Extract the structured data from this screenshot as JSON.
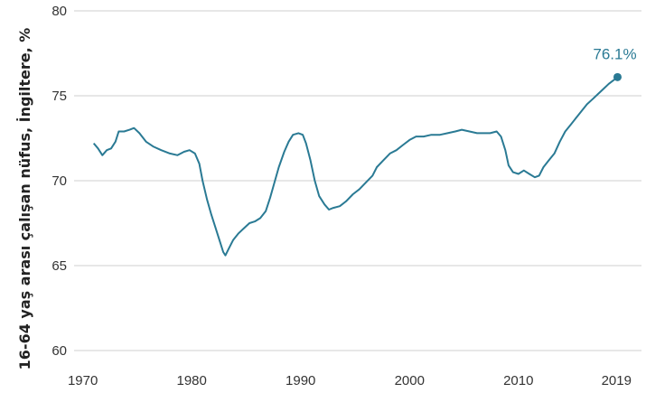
{
  "chart_data": {
    "type": "line",
    "title": "",
    "xlabel": "",
    "ylabel": "16-64 yaş arası çalışan nüfus, İngiltere, %",
    "xlim": [
      1969.2,
      2021.3
    ],
    "ylim": [
      60,
      80
    ],
    "x_ticks": [
      1970,
      1980,
      1990,
      2000,
      2010,
      2019
    ],
    "x_tick_labels": [
      "1970",
      "1980",
      "1990",
      "2000",
      "2010",
      "2019"
    ],
    "y_ticks": [
      60,
      65,
      70,
      75,
      80
    ],
    "y_tick_labels": [
      "60",
      "65",
      "70",
      "75",
      "80"
    ],
    "grid": "horizontal",
    "colors": {
      "line": "#2a7a94",
      "grid": "#cfcfcf",
      "label": "#2a7a94"
    },
    "end_annotation": {
      "x": 2019.1,
      "y": 76.1,
      "text": "76.1%"
    },
    "series": [
      {
        "points": [
          [
            1971.0,
            72.2
          ],
          [
            1971.4,
            71.9
          ],
          [
            1971.8,
            71.5
          ],
          [
            1972.2,
            71.8
          ],
          [
            1972.6,
            71.9
          ],
          [
            1973.0,
            72.3
          ],
          [
            1973.3,
            72.9
          ],
          [
            1973.8,
            72.9
          ],
          [
            1974.3,
            73.0
          ],
          [
            1974.7,
            73.1
          ],
          [
            1975.2,
            72.8
          ],
          [
            1975.8,
            72.3
          ],
          [
            1976.5,
            72.0
          ],
          [
            1977.2,
            71.8
          ],
          [
            1978.0,
            71.6
          ],
          [
            1978.7,
            71.5
          ],
          [
            1979.3,
            71.7
          ],
          [
            1979.8,
            71.8
          ],
          [
            1980.3,
            71.6
          ],
          [
            1980.7,
            71.0
          ],
          [
            1981.0,
            70.0
          ],
          [
            1981.4,
            68.9
          ],
          [
            1981.8,
            68.0
          ],
          [
            1982.2,
            67.2
          ],
          [
            1982.6,
            66.4
          ],
          [
            1982.9,
            65.8
          ],
          [
            1983.1,
            65.6
          ],
          [
            1983.4,
            66.0
          ],
          [
            1983.8,
            66.5
          ],
          [
            1984.3,
            66.9
          ],
          [
            1984.8,
            67.2
          ],
          [
            1985.3,
            67.5
          ],
          [
            1985.8,
            67.6
          ],
          [
            1986.3,
            67.8
          ],
          [
            1986.8,
            68.2
          ],
          [
            1987.2,
            69.0
          ],
          [
            1987.6,
            69.9
          ],
          [
            1988.0,
            70.8
          ],
          [
            1988.5,
            71.7
          ],
          [
            1988.9,
            72.3
          ],
          [
            1989.3,
            72.7
          ],
          [
            1989.8,
            72.8
          ],
          [
            1990.2,
            72.7
          ],
          [
            1990.5,
            72.2
          ],
          [
            1990.9,
            71.2
          ],
          [
            1991.3,
            70.0
          ],
          [
            1991.7,
            69.1
          ],
          [
            1992.2,
            68.6
          ],
          [
            1992.6,
            68.3
          ],
          [
            1993.0,
            68.4
          ],
          [
            1993.6,
            68.5
          ],
          [
            1994.2,
            68.8
          ],
          [
            1994.8,
            69.2
          ],
          [
            1995.4,
            69.5
          ],
          [
            1996.0,
            69.9
          ],
          [
            1996.6,
            70.3
          ],
          [
            1997.0,
            70.8
          ],
          [
            1997.6,
            71.2
          ],
          [
            1998.2,
            71.6
          ],
          [
            1998.8,
            71.8
          ],
          [
            1999.4,
            72.1
          ],
          [
            2000.0,
            72.4
          ],
          [
            2000.6,
            72.6
          ],
          [
            2001.3,
            72.6
          ],
          [
            2002.0,
            72.7
          ],
          [
            2002.8,
            72.7
          ],
          [
            2003.5,
            72.8
          ],
          [
            2004.2,
            72.9
          ],
          [
            2004.8,
            73.0
          ],
          [
            2005.5,
            72.9
          ],
          [
            2006.2,
            72.8
          ],
          [
            2006.8,
            72.8
          ],
          [
            2007.4,
            72.8
          ],
          [
            2008.0,
            72.9
          ],
          [
            2008.4,
            72.6
          ],
          [
            2008.8,
            71.8
          ],
          [
            2009.1,
            70.9
          ],
          [
            2009.5,
            70.5
          ],
          [
            2010.0,
            70.4
          ],
          [
            2010.5,
            70.6
          ],
          [
            2011.0,
            70.4
          ],
          [
            2011.5,
            70.2
          ],
          [
            2011.9,
            70.3
          ],
          [
            2012.3,
            70.8
          ],
          [
            2012.8,
            71.2
          ],
          [
            2013.3,
            71.6
          ],
          [
            2013.8,
            72.3
          ],
          [
            2014.3,
            72.9
          ],
          [
            2014.8,
            73.3
          ],
          [
            2015.3,
            73.7
          ],
          [
            2015.8,
            74.1
          ],
          [
            2016.3,
            74.5
          ],
          [
            2016.8,
            74.8
          ],
          [
            2017.3,
            75.1
          ],
          [
            2017.8,
            75.4
          ],
          [
            2018.3,
            75.7
          ],
          [
            2018.7,
            75.9
          ],
          [
            2019.1,
            76.1
          ]
        ]
      }
    ]
  }
}
